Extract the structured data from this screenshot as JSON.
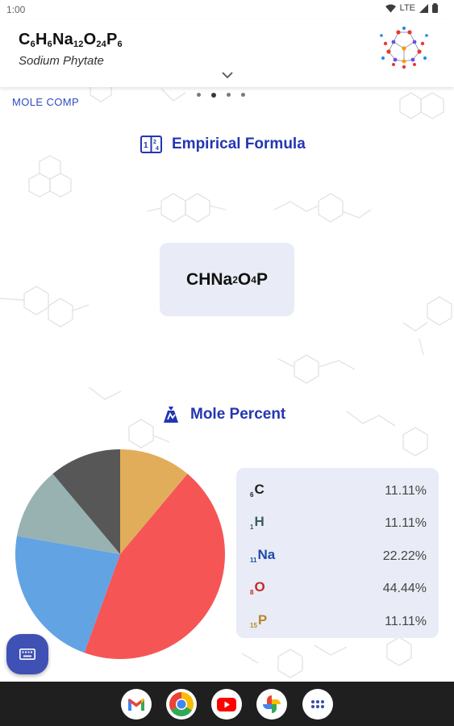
{
  "status_bar": {
    "time": "1:00",
    "network": "LTE"
  },
  "header": {
    "formula": [
      {
        "el": "C",
        "n": "6"
      },
      {
        "el": "H",
        "n": "6"
      },
      {
        "el": "Na",
        "n": "12"
      },
      {
        "el": "O",
        "n": "24"
      },
      {
        "el": "P",
        "n": "6"
      }
    ],
    "compound_name": "Sodium Phytate"
  },
  "tabs": {
    "left_label": "MOLE COMP",
    "page_count": 4,
    "active_page": 1
  },
  "empirical": {
    "heading": "Empirical Formula",
    "formula": [
      {
        "el": "C",
        "n": ""
      },
      {
        "el": "H",
        "n": ""
      },
      {
        "el": "Na",
        "n": "2"
      },
      {
        "el": "O",
        "n": "4"
      },
      {
        "el": "P",
        "n": ""
      }
    ]
  },
  "mole_percent": {
    "heading": "Mole Percent",
    "rows": [
      {
        "z": "6",
        "symbol": "C",
        "percent": "11.11%",
        "color": "#1f1f1f"
      },
      {
        "z": "1",
        "symbol": "H",
        "percent": "11.11%",
        "color": "#3d5c5c"
      },
      {
        "z": "11",
        "symbol": "Na",
        "percent": "22.22%",
        "color": "#1f4aa8"
      },
      {
        "z": "8",
        "symbol": "O",
        "percent": "44.44%",
        "color": "#c62828"
      },
      {
        "z": "15",
        "symbol": "P",
        "percent": "11.11%",
        "color": "#b8862b"
      }
    ]
  },
  "chart_data": {
    "type": "pie",
    "categories": [
      "P",
      "O",
      "Na",
      "H",
      "C"
    ],
    "values": [
      11.11,
      44.44,
      22.22,
      11.11,
      11.11
    ],
    "colors": [
      "#e2ad5a",
      "#f65555",
      "#62a3e4",
      "#98b2b2",
      "#575757"
    ],
    "start_angle_deg": 0,
    "direction": "clockwise from top"
  },
  "icons": {
    "empirical": "formula-grid-icon",
    "mole": "weight-icon",
    "fab": "keyboard-icon",
    "nav_apps": [
      "gmail-icon",
      "chrome-icon",
      "youtube-icon",
      "photos-icon",
      "app-drawer-icon"
    ]
  },
  "colors": {
    "accent": "#2436b2",
    "fab": "#3f51b5",
    "card_bg": "#e9ecf6"
  }
}
